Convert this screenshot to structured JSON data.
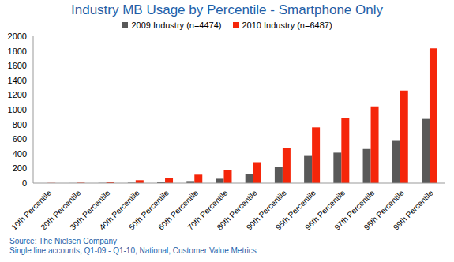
{
  "chart_data": {
    "type": "bar",
    "title": "Industry MB Usage by Percentile - Smartphone Only",
    "categories": [
      "10th Percentile",
      "20th Percentile",
      "30th Percentile",
      "40th Percentile",
      "50th Percentile",
      "60th Percentile",
      "70th Percentile",
      "80th Percentile",
      "90th Percentile",
      "95th Percentile",
      "96th Percentile",
      "97th Percentile",
      "98th Percentile",
      "99th Percentile"
    ],
    "series": [
      {
        "name": "2009 Industry (n=4474)",
        "color": "#595959",
        "values": [
          0,
          1,
          3,
          6,
          12,
          28,
          60,
          120,
          215,
          370,
          415,
          465,
          575,
          875
        ]
      },
      {
        "name": "2010 Industry (n=6487)",
        "color": "#f5260a",
        "values": [
          2,
          6,
          17,
          40,
          70,
          115,
          180,
          285,
          480,
          760,
          890,
          1045,
          1260,
          1835
        ]
      }
    ],
    "ylim": [
      0,
      2000
    ],
    "yticks": [
      0,
      200,
      400,
      600,
      800,
      1000,
      1200,
      1400,
      1600,
      1800,
      2000
    ],
    "grid": false,
    "legend": "top",
    "annotations": [
      "Source: The Nielsen Company",
      "Single line accounts, Q1-09 - Q1-10, National, Customer Value Metrics"
    ]
  }
}
